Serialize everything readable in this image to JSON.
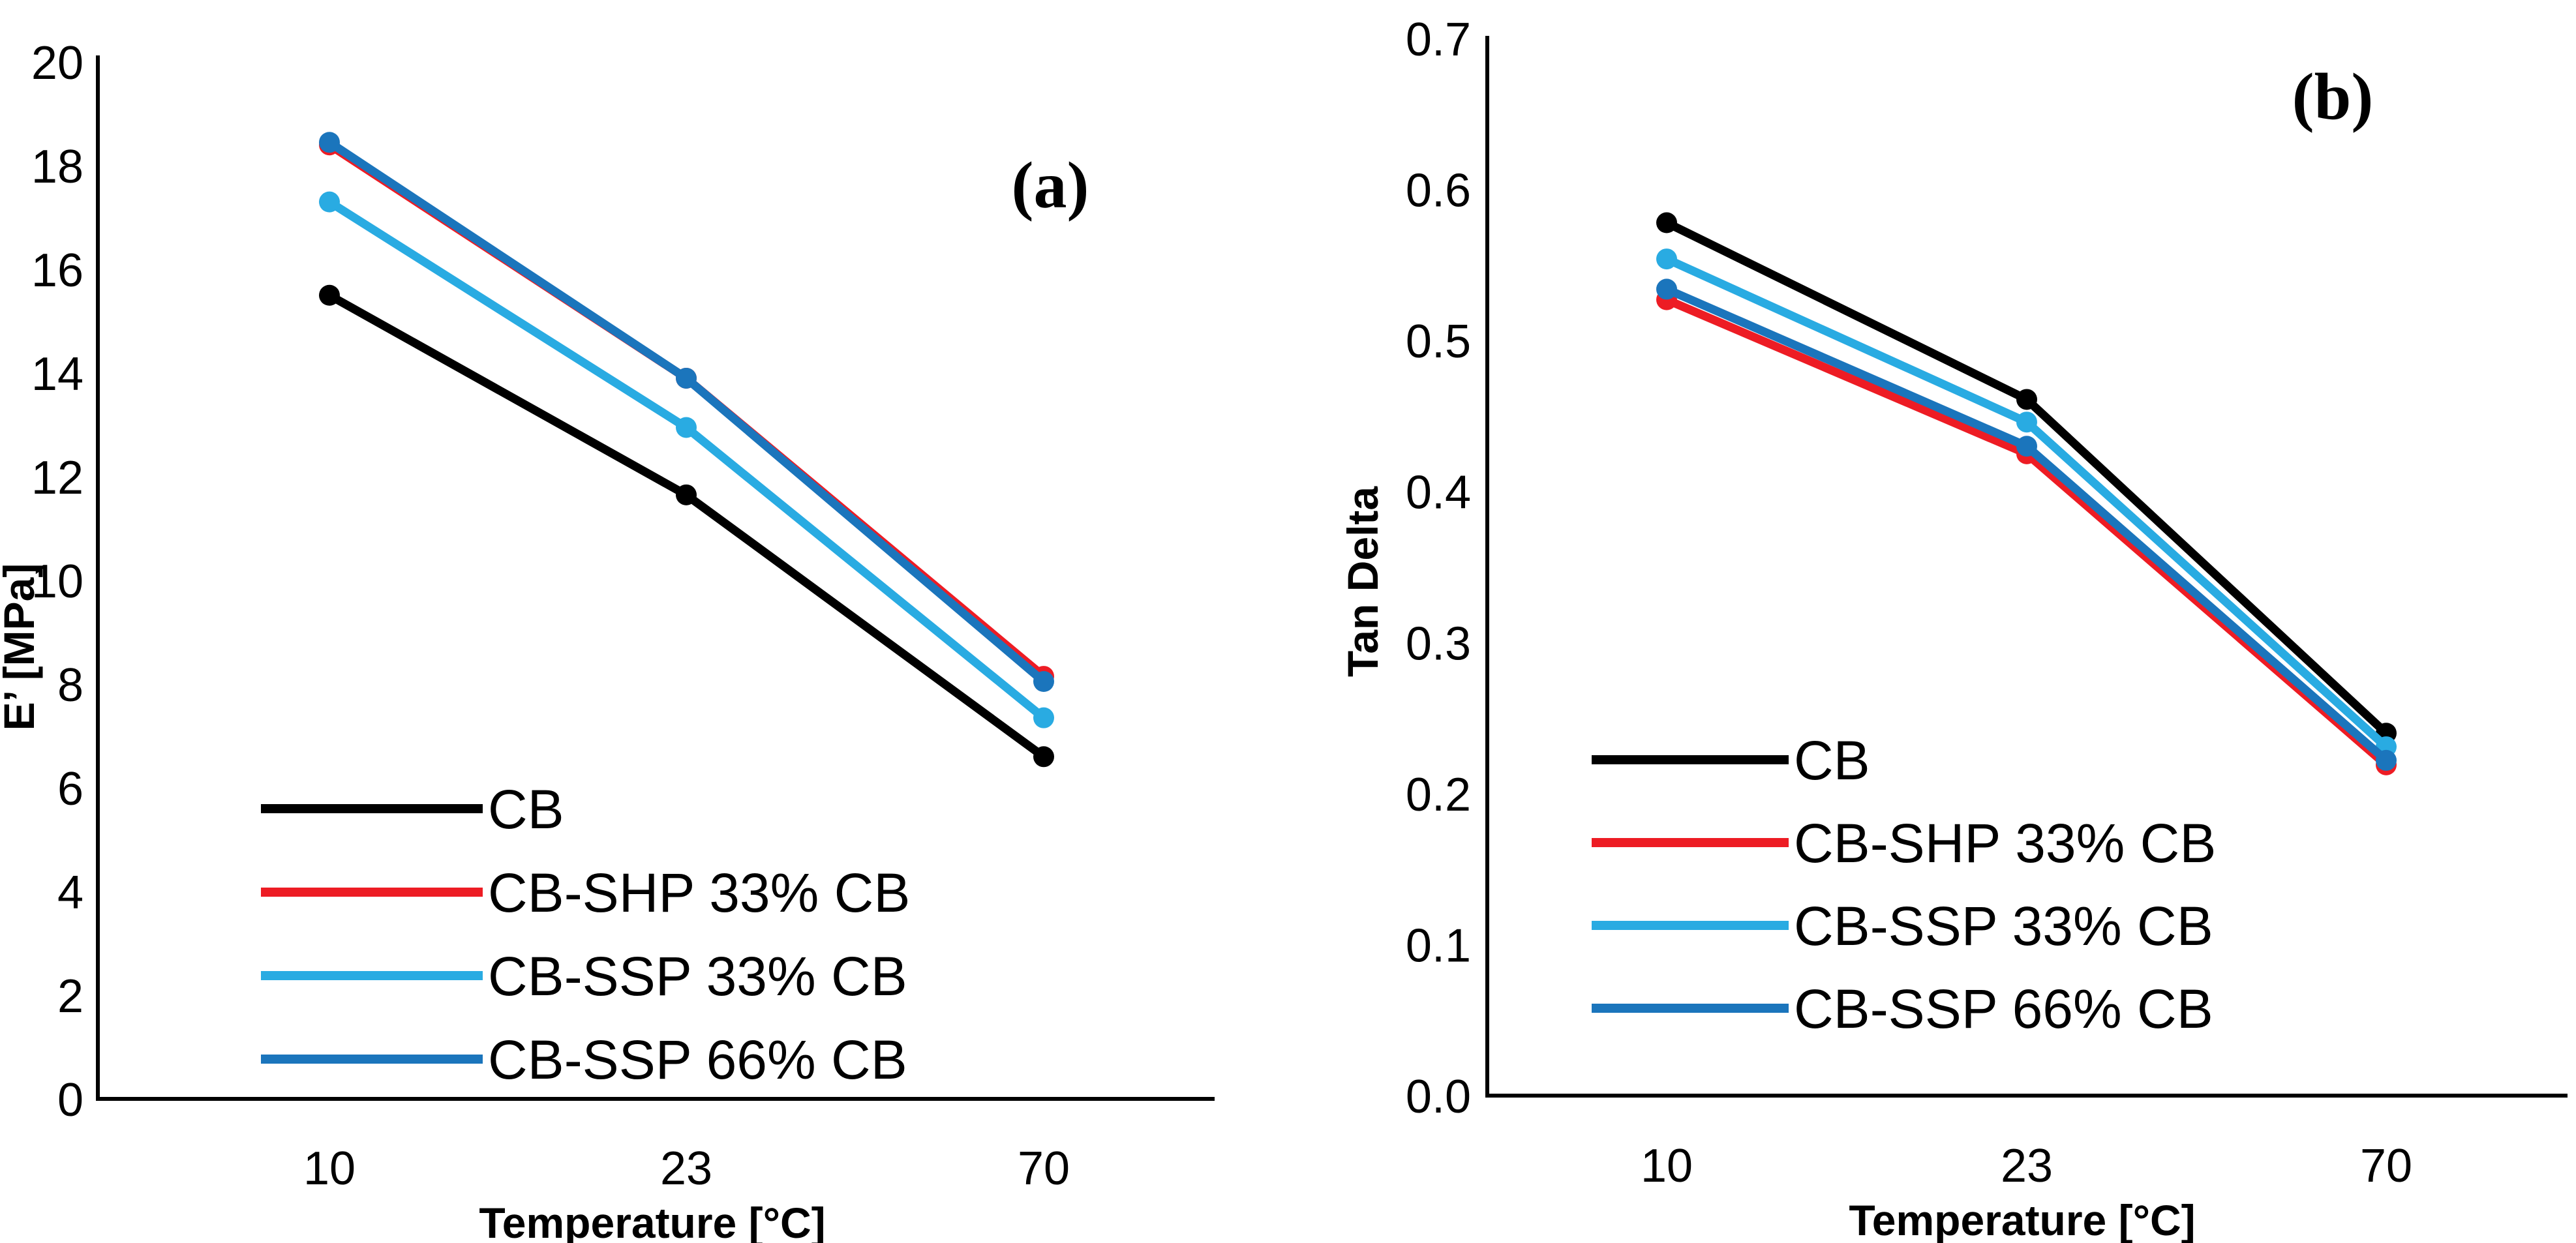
{
  "chart_data": [
    {
      "type": "line",
      "panel_label": "(a)",
      "title": "",
      "xlabel": "Temperature [°C]",
      "ylabel": "E’ [MPa]",
      "x_tick_labels": [
        "10",
        "23",
        "70"
      ],
      "y_tick_labels": [
        "0",
        "2",
        "4",
        "6",
        "8",
        "10",
        "12",
        "14",
        "16",
        "18",
        "20"
      ],
      "ylim": [
        0,
        20
      ],
      "grid": false,
      "legend_position": "inside-lower-left",
      "categories": [
        10,
        23,
        70
      ],
      "series": [
        {
          "name": "CB",
          "color": "#000000",
          "values": [
            15.5,
            11.65,
            6.6
          ]
        },
        {
          "name": "CB-SHP 33% CB",
          "color": "#ED1C24",
          "values": [
            18.4,
            13.9,
            8.15
          ]
        },
        {
          "name": "CB-SSP 33% CB",
          "color": "#29ABE2",
          "values": [
            17.3,
            12.95,
            7.35
          ]
        },
        {
          "name": "CB-SSP 66% CB",
          "color": "#1B75BC",
          "values": [
            18.45,
            13.9,
            8.05
          ]
        }
      ]
    },
    {
      "type": "line",
      "panel_label": "(b)",
      "title": "",
      "xlabel": "Temperature [°C]",
      "ylabel": "Tan Delta",
      "x_tick_labels": [
        "10",
        "23",
        "70"
      ],
      "y_tick_labels": [
        "0.0",
        "0.1",
        "0.2",
        "0.3",
        "0.4",
        "0.5",
        "0.6",
        "0.7"
      ],
      "ylim": [
        0,
        0.7
      ],
      "grid": false,
      "legend_position": "inside-lower-left",
      "categories": [
        10,
        23,
        70
      ],
      "series": [
        {
          "name": "CB",
          "color": "#000000",
          "values": [
            0.578,
            0.461,
            0.24
          ]
        },
        {
          "name": "CB-SHP 33% CB",
          "color": "#ED1C24",
          "values": [
            0.527,
            0.425,
            0.219
          ]
        },
        {
          "name": "CB-SSP 33% CB",
          "color": "#29ABE2",
          "values": [
            0.554,
            0.446,
            0.231
          ]
        },
        {
          "name": "CB-SSP 66% CB",
          "color": "#1B75BC",
          "values": [
            0.534,
            0.43,
            0.222
          ]
        }
      ]
    }
  ]
}
